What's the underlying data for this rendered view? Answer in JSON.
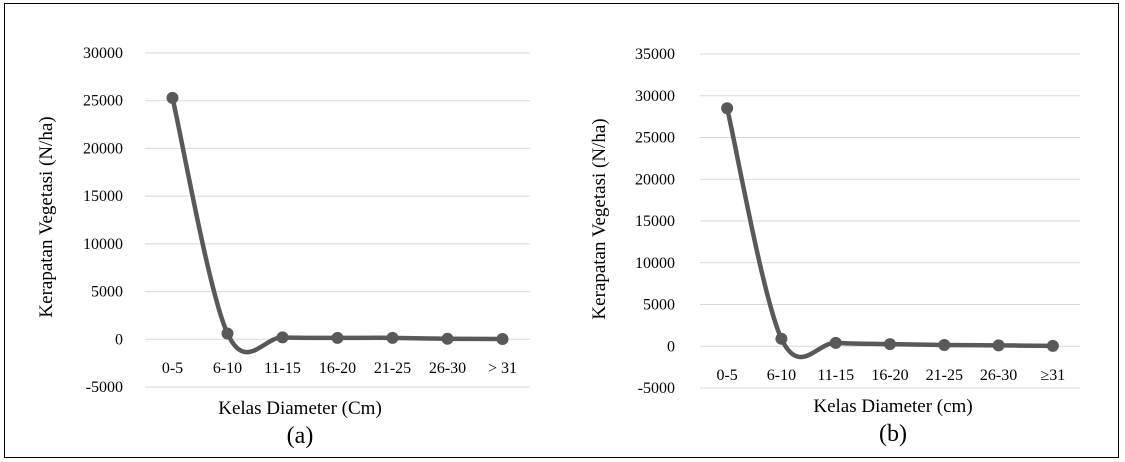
{
  "chart_data": [
    {
      "type": "line",
      "categories": [
        "0-5",
        "6-10",
        "11-15",
        "16-20",
        "21-25",
        "26-30",
        "> 31"
      ],
      "values": [
        25300,
        600,
        200,
        150,
        150,
        50,
        30
      ],
      "xlabel": "Kelas Diameter (Cm)",
      "ylabel": "Kerapatan Vegetasi (N/ha)",
      "ylim": [
        -5000,
        30000
      ],
      "yticks": [
        -5000,
        0,
        5000,
        10000,
        15000,
        20000,
        25000,
        30000
      ],
      "ytick_labels": [
        "-5000",
        "0",
        "5000",
        "10000",
        "15000",
        "20000",
        "25000",
        "30000"
      ],
      "caption": "(a)",
      "grid": true,
      "color": "#595959"
    },
    {
      "type": "line",
      "categories": [
        "0-5",
        "6-10",
        "11-15",
        "16-20",
        "21-25",
        "26-30",
        "≥31"
      ],
      "values": [
        28500,
        900,
        400,
        250,
        150,
        100,
        50
      ],
      "xlabel": "Kelas Diameter (cm)",
      "ylabel": "Kerapatan Vegetasi (N/ha)",
      "ylim": [
        -5000,
        35000
      ],
      "yticks": [
        -5000,
        0,
        5000,
        10000,
        15000,
        20000,
        25000,
        30000,
        35000
      ],
      "ytick_labels": [
        "-5000",
        "0",
        "5000",
        "10000",
        "15000",
        "20000",
        "25000",
        "30000",
        "35000"
      ],
      "caption": "(b)",
      "grid": true,
      "color": "#595959"
    }
  ]
}
